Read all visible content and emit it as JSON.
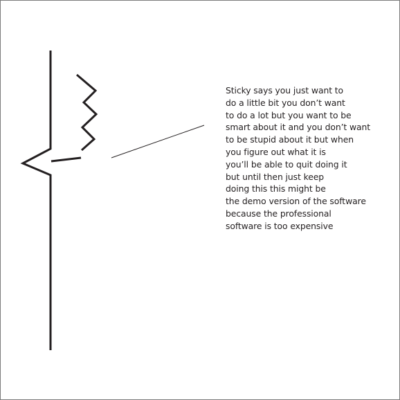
{
  "caption": {
    "lines": [
      "Sticky says you just want to",
      "do a little bit you don’t want",
      "to do a lot but you want to be",
      "smart about it and you don’t want",
      "to be stupid about it but when",
      "you figure out what it is",
      "you’ll be able to quit doing it",
      "but until then just keep",
      "doing this this might be",
      "the demo version of the software",
      "because the professional",
      "software is too expensive"
    ]
  },
  "colors": {
    "ink": "#231f20",
    "background": "#ffffff",
    "frame": "#7a7a7a"
  }
}
